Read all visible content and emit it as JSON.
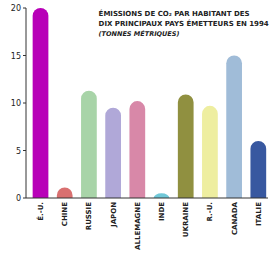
{
  "chart_data": {
    "type": "bar",
    "title": [
      "ÉMISSIONS DE CO₂ PAR HABITANT DES",
      "DIX PRINCIPAUX PAYS ÉMETTEURS EN 1994"
    ],
    "subtitle": "(TONNES MÉTRIQUES)",
    "categories": [
      "É.-U.",
      "CHINE",
      "RUSSIE",
      "JAPON",
      "ALLEMAGNE",
      "INDE",
      "UKRAINE",
      "R.-U.",
      "CANADA",
      "ITALIE"
    ],
    "values": [
      20,
      1.1,
      11.3,
      9.5,
      10.2,
      0.5,
      10.9,
      9.7,
      15,
      6.0
    ],
    "colors": [
      "#b800b8",
      "#d97070",
      "#a8d4a8",
      "#b0a8d8",
      "#d888a8",
      "#70c8d8",
      "#909040",
      "#eeeea0",
      "#a0bcd8",
      "#3858a0"
    ],
    "ylim": [
      0,
      20
    ],
    "yticks": [
      0,
      5,
      10,
      15,
      20
    ],
    "grid": false
  }
}
